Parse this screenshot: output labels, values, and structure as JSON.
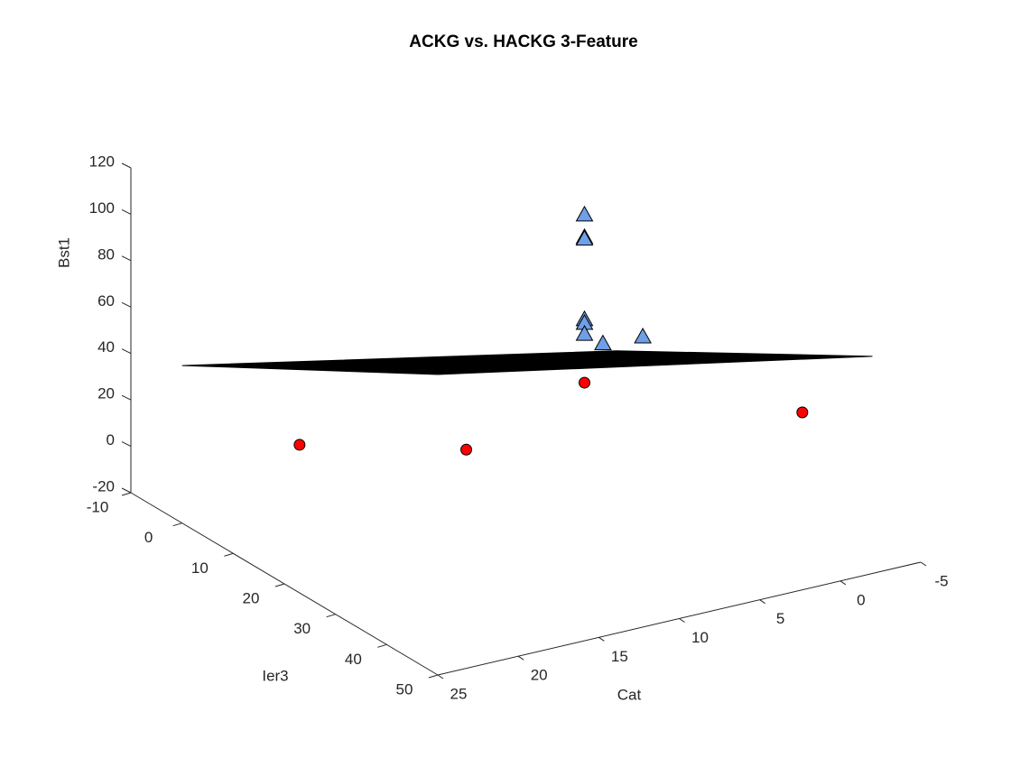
{
  "chart_data": {
    "type": "scatter3d",
    "title": "ACKG vs. HACKG 3-Feature",
    "xlabel": "Cat",
    "ylabel": "Ier3",
    "zlabel": "Bst1",
    "xlim": [
      -5,
      25
    ],
    "ylim": [
      -10,
      50
    ],
    "zlim": [
      -20,
      120
    ],
    "xticks": [
      -5,
      0,
      5,
      10,
      15,
      20,
      25
    ],
    "yticks": [
      -10,
      0,
      10,
      20,
      30,
      40,
      50
    ],
    "zticks": [
      -20,
      0,
      20,
      40,
      60,
      80,
      100,
      120
    ],
    "surface": {
      "color": "#000000",
      "x": [
        25,
        25,
        -2,
        -2
      ],
      "y": [
        0,
        50,
        50,
        0
      ],
      "z": [
        47.9,
        109.5,
        73.6,
        10.5
      ]
    },
    "series": [
      {
        "marker": "circle",
        "color": "#ff0000",
        "x": [
          17.7,
          10.3,
          0,
          -4
        ],
        "y": [
          0,
          9.3,
          0,
          30
        ],
        "z": [
          1.9,
          0,
          0,
          20
        ]
      },
      {
        "marker": "triangle",
        "color": "#6f9fe6",
        "x": [
          0,
          0,
          0,
          0,
          0,
          0,
          0,
          0
        ],
        "y": [
          0,
          0,
          0,
          0,
          0,
          0,
          3.6,
          11.4
        ],
        "z": [
          72.4,
          62.7,
          62,
          27.3,
          25.7,
          21,
          21.6,
          34.8
        ]
      }
    ]
  }
}
